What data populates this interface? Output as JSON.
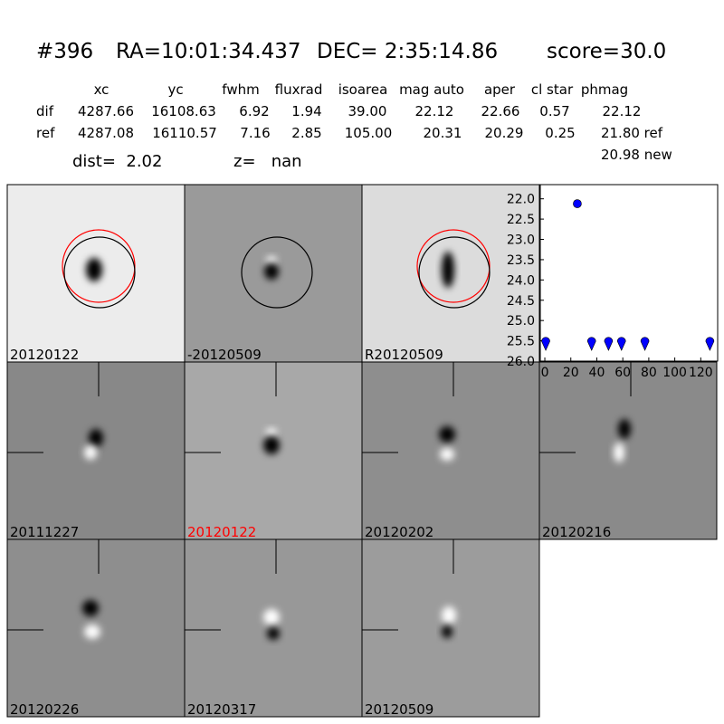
{
  "header": {
    "id": "#396",
    "ra": "RA=10:01:34.437",
    "dec": "DEC= 2:35:14.86",
    "score": "score=30.0"
  },
  "table": {
    "columns": [
      "xc",
      "yc",
      "fwhm",
      "fluxrad",
      "isoarea",
      "mag auto",
      "aper",
      "cl star",
      "phmag"
    ],
    "rows": [
      [
        "dif",
        "4287.66",
        "16108.63",
        "6.92",
        "1.94",
        "39.00",
        "22.12",
        "22.66",
        "0.57",
        "22.12"
      ],
      [
        "ref",
        "4287.08",
        "16110.57",
        "7.16",
        "2.85",
        "105.00",
        "20.31",
        "20.29",
        "0.25",
        "21.80 ref"
      ]
    ],
    "extra": "20.98 new"
  },
  "dist": "dist=  2.02",
  "z": "z=   nan",
  "panels": [
    "20120122",
    "-20120509",
    "R20120509",
    "20111227",
    "20120122",
    "20120202",
    "20120216",
    "20120226",
    "20120317",
    "20120509"
  ],
  "chart_data": {
    "type": "scatter",
    "xlim": [
      -3.5,
      133
    ],
    "ylim": [
      21.65,
      26.0
    ],
    "y_inverted": true,
    "xticks": [
      0,
      20,
      40,
      60,
      80,
      100,
      120
    ],
    "yticks": [
      {
        "value": 22.0,
        "label": "22.0"
      },
      22.5,
      {
        "value": 23.0,
        "label": "23.0"
      },
      23.5,
      {
        "value": 24.0,
        "label": "24.0"
      },
      24.5,
      {
        "value": 25.0,
        "label": "25.0"
      },
      25.5,
      {
        "value": 26.0,
        "label": "26.0"
      }
    ],
    "series": [
      {
        "marker": "circle",
        "color": "#0000ff",
        "x": [
          25
        ],
        "values": [
          22.12
        ]
      },
      {
        "marker": "triangle-down",
        "color": "#0000ff",
        "x": [
          0.7,
          36,
          49,
          59,
          77,
          127
        ],
        "values": [
          25.58,
          25.58,
          25.58,
          25.58,
          25.58,
          25.58
        ]
      }
    ]
  }
}
